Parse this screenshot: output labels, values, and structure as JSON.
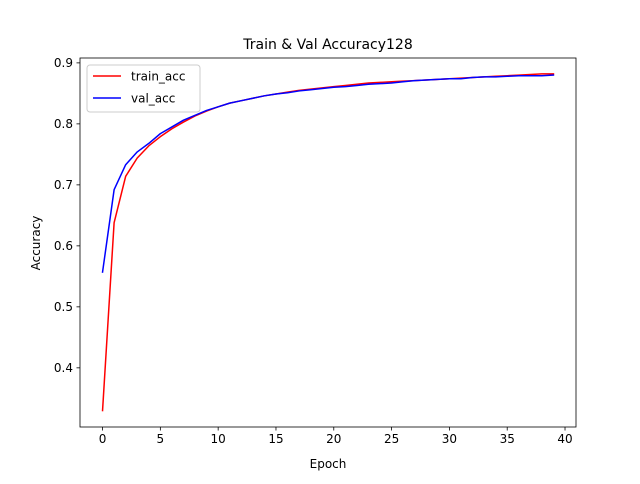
{
  "chart_data": {
    "type": "line",
    "title": "Train & Val Accuracy128",
    "xlabel": "Epoch",
    "ylabel": "Accuracy",
    "xlim": [
      -1.95,
      40.95
    ],
    "ylim": [
      0.303,
      0.908
    ],
    "xticks": [
      0,
      5,
      10,
      15,
      20,
      25,
      30,
      35,
      40
    ],
    "yticks": [
      0.4,
      0.5,
      0.6,
      0.7,
      0.8,
      0.9
    ],
    "grid": false,
    "legend_position": "upper left",
    "x": [
      0,
      1,
      2,
      3,
      4,
      5,
      6,
      7,
      8,
      9,
      10,
      11,
      12,
      13,
      14,
      15,
      16,
      17,
      18,
      19,
      20,
      21,
      22,
      23,
      24,
      25,
      26,
      27,
      28,
      29,
      30,
      31,
      32,
      33,
      34,
      35,
      36,
      37,
      38,
      39
    ],
    "series": [
      {
        "name": "train_acc",
        "color": "#ff0000",
        "values": [
          0.33,
          0.638,
          0.714,
          0.744,
          0.764,
          0.779,
          0.792,
          0.803,
          0.813,
          0.821,
          0.828,
          0.834,
          0.838,
          0.842,
          0.846,
          0.849,
          0.852,
          0.855,
          0.857,
          0.859,
          0.861,
          0.863,
          0.865,
          0.867,
          0.868,
          0.869,
          0.87,
          0.871,
          0.872,
          0.873,
          0.874,
          0.875,
          0.876,
          0.877,
          0.878,
          0.879,
          0.88,
          0.881,
          0.882,
          0.882
        ]
      },
      {
        "name": "val_acc",
        "color": "#0000ff",
        "values": [
          0.557,
          0.692,
          0.733,
          0.754,
          0.768,
          0.784,
          0.795,
          0.806,
          0.814,
          0.822,
          0.828,
          0.834,
          0.838,
          0.842,
          0.846,
          0.849,
          0.851,
          0.854,
          0.856,
          0.858,
          0.86,
          0.861,
          0.863,
          0.865,
          0.866,
          0.867,
          0.869,
          0.871,
          0.872,
          0.873,
          0.874,
          0.874,
          0.876,
          0.877,
          0.877,
          0.878,
          0.879,
          0.879,
          0.879,
          0.88
        ]
      }
    ]
  }
}
